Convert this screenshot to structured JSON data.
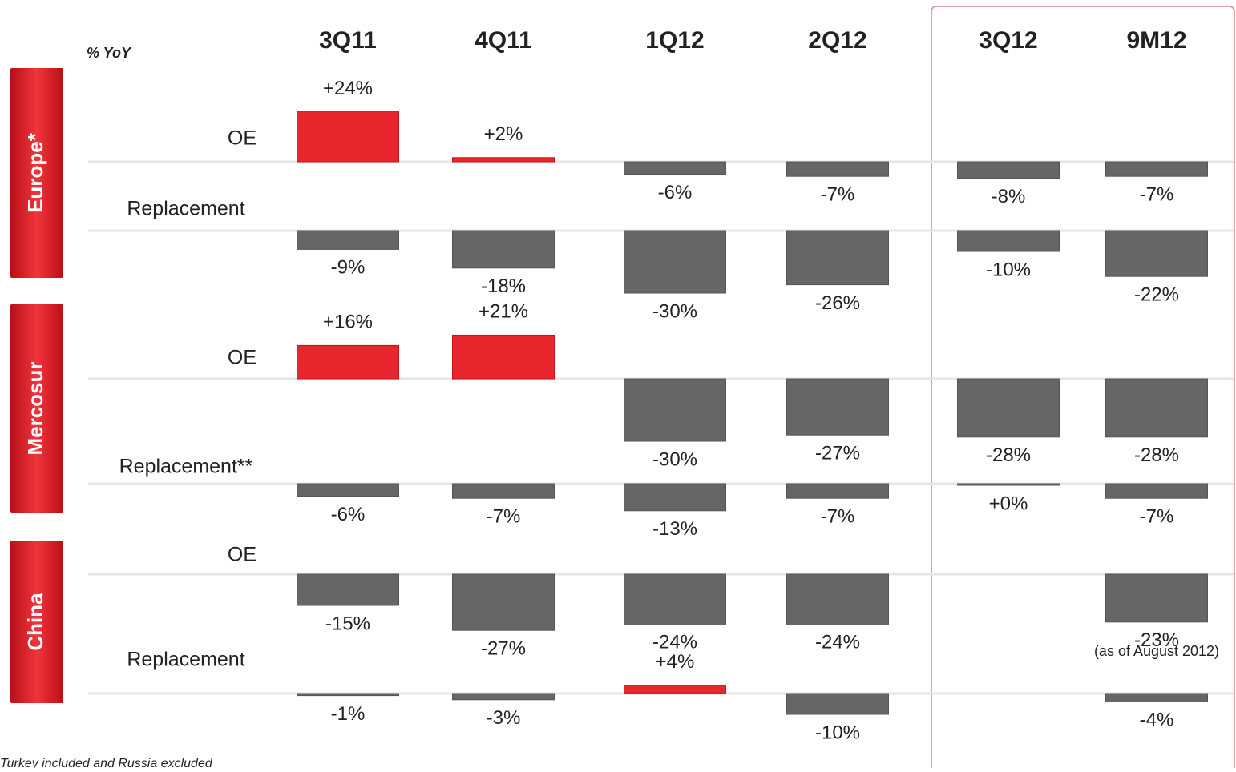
{
  "chart_data": {
    "type": "bar",
    "unit_label": "% YoY",
    "categories": [
      "3Q11",
      "4Q11",
      "1Q12",
      "2Q12",
      "3Q12",
      "9M12"
    ],
    "colors": {
      "positive": "#e8262d",
      "negative": "#666666"
    },
    "groups": [
      {
        "name": "Europe*",
        "rows": [
          {
            "name": "OE",
            "values": [
              24,
              2,
              -6,
              -7,
              -8,
              -7
            ],
            "value_labels": [
              "+24%",
              "+2%",
              "-6%",
              "-7%",
              "-8%",
              "-7%"
            ]
          },
          {
            "name": "Replacement",
            "values": [
              -9,
              -18,
              -30,
              -26,
              -10,
              -22
            ],
            "value_labels": [
              "-9%",
              "-18%",
              "-30%",
              "-26%",
              "-10%",
              "-22%"
            ]
          }
        ]
      },
      {
        "name": "Mercosur",
        "rows": [
          {
            "name": "OE",
            "values": [
              16,
              21,
              -30,
              -27,
              -28,
              -28
            ],
            "value_labels": [
              "+16%",
              "+21%",
              "-30%",
              "-27%",
              "-28%",
              "-28%"
            ]
          },
          {
            "name": "Replacement**",
            "values": [
              -6,
              -7,
              -13,
              -7,
              0,
              -7
            ],
            "value_labels": [
              "-6%",
              "-7%",
              "-13%",
              "-7%",
              "+0%",
              "-7%"
            ]
          }
        ]
      },
      {
        "name": "China",
        "rows": [
          {
            "name": "OE",
            "values": [
              -15,
              -27,
              -24,
              -24,
              null,
              -23
            ],
            "value_labels": [
              "-15%",
              "-27%",
              "-24%",
              "-24%",
              null,
              "-23%"
            ]
          },
          {
            "name": "Replacement",
            "values": [
              -1,
              -3,
              4,
              -10,
              null,
              -4
            ],
            "value_labels": [
              "-1%",
              "-3%",
              "+4%",
              "-10%",
              null,
              "-4%"
            ]
          }
        ]
      }
    ],
    "annotation": "(as of August 2012)",
    "footnote": "Turkey included and Russia excluded"
  }
}
